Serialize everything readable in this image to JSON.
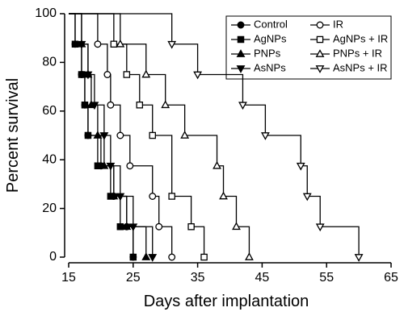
{
  "chart_data": {
    "type": "step",
    "xlabel": "Days after implantation",
    "ylabel": "Percent survival",
    "xlim": [
      15,
      65
    ],
    "xticks": [
      15,
      25,
      35,
      45,
      55,
      65
    ],
    "ylim": [
      0,
      100
    ],
    "yticks": [
      0,
      20,
      40,
      60,
      80,
      100
    ],
    "series": [
      {
        "name": "Control",
        "color": "#000000",
        "marker": "circle",
        "filled": true,
        "x": [
          15,
          16,
          17,
          17.5,
          18,
          20,
          22,
          24,
          25
        ],
        "values": [
          100,
          87.5,
          75,
          62.5,
          50,
          37.5,
          25,
          12.5,
          0
        ]
      },
      {
        "name": "IR",
        "color": "#000000",
        "marker": "circle",
        "filled": false,
        "x": [
          15,
          19.5,
          21,
          21.5,
          23,
          24.5,
          28,
          29,
          31
        ],
        "values": [
          100,
          87.5,
          75,
          62.5,
          50,
          37.5,
          25,
          12.5,
          0
        ]
      },
      {
        "name": "AgNPs",
        "color": "#000000",
        "marker": "square",
        "filled": true,
        "x": [
          15,
          16,
          17,
          17.5,
          18,
          19.5,
          21.5,
          23,
          25
        ],
        "values": [
          100,
          87.5,
          75,
          62.5,
          50,
          37.5,
          25,
          12.5,
          0
        ]
      },
      {
        "name": "AgNPs + IR",
        "color": "#000000",
        "marker": "square",
        "filled": false,
        "x": [
          15,
          22,
          24,
          26,
          28,
          31,
          34,
          36
        ],
        "values": [
          100,
          87.5,
          75,
          62.5,
          50,
          25,
          12.5,
          0
        ]
      },
      {
        "name": "PNPs",
        "color": "#000000",
        "marker": "triangle-up",
        "filled": true,
        "x": [
          15,
          17,
          18,
          18.5,
          19.5,
          20.5,
          22,
          24,
          27
        ],
        "values": [
          100,
          87.5,
          75,
          62.5,
          50,
          37.5,
          25,
          12.5,
          0
        ]
      },
      {
        "name": "PNPs + IR",
        "color": "#000000",
        "marker": "triangle-up",
        "filled": false,
        "x": [
          15,
          23,
          27,
          30,
          33,
          38,
          39,
          41,
          43
        ],
        "values": [
          100,
          87.5,
          75,
          62.5,
          50,
          37.5,
          25,
          12.5,
          0
        ]
      },
      {
        "name": "AsNPs",
        "color": "#000000",
        "marker": "triangle-down",
        "filled": true,
        "x": [
          15,
          17,
          18,
          19,
          20.5,
          21.5,
          23,
          25,
          28
        ],
        "values": [
          100,
          87.5,
          75,
          62.5,
          50,
          37.5,
          25,
          12.5,
          0
        ]
      },
      {
        "name": "AsNPs + IR",
        "color": "#000000",
        "marker": "triangle-down",
        "filled": false,
        "x": [
          15,
          31,
          35,
          42,
          45.5,
          51,
          52,
          54,
          60
        ],
        "values": [
          100,
          87.5,
          75,
          62.5,
          50,
          37.5,
          25,
          12.5,
          0
        ]
      }
    ]
  }
}
